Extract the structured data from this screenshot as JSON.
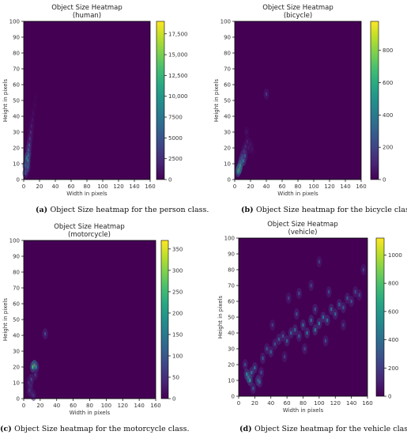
{
  "chart_data": [
    {
      "type": "heatmap",
      "title": "Object Size Heatmap",
      "subtitle": "(human)",
      "xlabel": "Width in pixels",
      "ylabel": "Height in pixels",
      "xlim": [
        0,
        160
      ],
      "ylim": [
        0,
        100
      ],
      "xticks": [
        0,
        20,
        40,
        60,
        80,
        100,
        120,
        140,
        160
      ],
      "yticks": [
        0,
        10,
        20,
        30,
        40,
        50,
        60,
        70,
        80,
        90,
        100
      ],
      "colorbar": {
        "min": 0,
        "max": 19000,
        "ticks": [
          0,
          2500,
          5000,
          7500,
          10000,
          12500,
          15000,
          17500
        ],
        "tick_labels": [
          "0",
          "2500",
          "5000",
          "7500",
          "10,000",
          "12,500",
          "15,000",
          "17,500"
        ]
      },
      "colormap": "viridis",
      "cells": [
        {
          "x": 4,
          "y": 10,
          "value": 16500
        },
        {
          "x": 3,
          "y": 8,
          "value": 13000
        },
        {
          "x": 5,
          "y": 12,
          "value": 12000
        },
        {
          "x": 4,
          "y": 14,
          "value": 9500
        },
        {
          "x": 6,
          "y": 16,
          "value": 8000
        },
        {
          "x": 3,
          "y": 6,
          "value": 7500
        },
        {
          "x": 6,
          "y": 19,
          "value": 6000
        },
        {
          "x": 7,
          "y": 22,
          "value": 4500
        },
        {
          "x": 2,
          "y": 4,
          "value": 4000
        },
        {
          "x": 8,
          "y": 26,
          "value": 3000
        },
        {
          "x": 9,
          "y": 30,
          "value": 2200
        },
        {
          "x": 10,
          "y": 34,
          "value": 1500
        },
        {
          "x": 11,
          "y": 38,
          "value": 1000
        },
        {
          "x": 12,
          "y": 42,
          "value": 700
        },
        {
          "x": 14,
          "y": 47,
          "value": 400
        },
        {
          "x": 15,
          "y": 52,
          "value": 250
        },
        {
          "x": 5,
          "y": 8,
          "value": 6500
        },
        {
          "x": 2,
          "y": 9,
          "value": 5000
        }
      ],
      "caption_label": "(a)",
      "caption_text": "Object Size heatmap for the person class."
    },
    {
      "type": "heatmap",
      "title": "Object Size Heatmap",
      "subtitle": "(bicycle)",
      "xlabel": "Width in pixels",
      "ylabel": "Height in pixels",
      "xlim": [
        0,
        160
      ],
      "ylim": [
        0,
        100
      ],
      "xticks": [
        0,
        20,
        40,
        60,
        80,
        100,
        120,
        140,
        160
      ],
      "yticks": [
        0,
        10,
        20,
        30,
        40,
        50,
        60,
        70,
        80,
        90,
        100
      ],
      "colorbar": {
        "min": 0,
        "max": 980,
        "ticks": [
          0,
          200,
          400,
          600,
          800
        ],
        "tick_labels": [
          "0",
          "200",
          "400",
          "600",
          "800"
        ]
      },
      "colormap": "viridis",
      "cells": [
        {
          "x": 6,
          "y": 7,
          "value": 950
        },
        {
          "x": 5,
          "y": 6,
          "value": 800
        },
        {
          "x": 7,
          "y": 9,
          "value": 650
        },
        {
          "x": 8,
          "y": 11,
          "value": 500
        },
        {
          "x": 9,
          "y": 13,
          "value": 380
        },
        {
          "x": 4,
          "y": 5,
          "value": 450
        },
        {
          "x": 10,
          "y": 15,
          "value": 280
        },
        {
          "x": 12,
          "y": 18,
          "value": 180
        },
        {
          "x": 14,
          "y": 21,
          "value": 120
        },
        {
          "x": 16,
          "y": 24,
          "value": 80
        },
        {
          "x": 18,
          "y": 20,
          "value": 90
        },
        {
          "x": 20,
          "y": 22,
          "value": 60
        },
        {
          "x": 22,
          "y": 19,
          "value": 50
        },
        {
          "x": 40,
          "y": 54,
          "value": 150
        },
        {
          "x": 11,
          "y": 12,
          "value": 420
        },
        {
          "x": 13,
          "y": 15,
          "value": 260
        },
        {
          "x": 15,
          "y": 30,
          "value": 50
        }
      ],
      "caption_label": "(b)",
      "caption_text": "Object Size heatmap for the bicycle class."
    },
    {
      "type": "heatmap",
      "title": "Object Size Heatmap",
      "subtitle": "(motorcycle)",
      "xlabel": "Width in pixels",
      "ylabel": "Height in pixels",
      "xlim": [
        0,
        160
      ],
      "ylim": [
        0,
        100
      ],
      "xticks": [
        0,
        20,
        40,
        60,
        80,
        100,
        120,
        140,
        160
      ],
      "yticks": [
        0,
        10,
        20,
        30,
        40,
        50,
        60,
        70,
        80,
        90,
        100
      ],
      "colorbar": {
        "min": 0,
        "max": 370,
        "ticks": [
          0,
          50,
          100,
          150,
          200,
          250,
          300,
          350
        ],
        "tick_labels": [
          "0",
          "50",
          "100",
          "150",
          "200",
          "250",
          "300",
          "350"
        ]
      },
      "colormap": "viridis",
      "cells": [
        {
          "x": 13,
          "y": 21,
          "value": 360
        },
        {
          "x": 11,
          "y": 20,
          "value": 250
        },
        {
          "x": 15,
          "y": 20,
          "value": 160
        },
        {
          "x": 9,
          "y": 12,
          "value": 90
        },
        {
          "x": 8,
          "y": 8,
          "value": 70
        },
        {
          "x": 7,
          "y": 5,
          "value": 60
        },
        {
          "x": 10,
          "y": 3,
          "value": 50
        },
        {
          "x": 12,
          "y": 2,
          "value": 45
        },
        {
          "x": 26,
          "y": 41,
          "value": 80
        },
        {
          "x": 14,
          "y": 15,
          "value": 60
        },
        {
          "x": 6,
          "y": 10,
          "value": 40
        }
      ],
      "caption_label": "(c)",
      "caption_text": "Object Size heatmap for the motorcycle class."
    },
    {
      "type": "heatmap",
      "title": "Object Size Heatmap",
      "subtitle": "(vehicle)",
      "xlabel": "Width in pixels",
      "ylabel": "Height in pixels",
      "xlim": [
        0,
        160
      ],
      "ylim": [
        0,
        100
      ],
      "xticks": [
        0,
        20,
        40,
        60,
        80,
        100,
        120,
        140,
        160
      ],
      "yticks": [
        0,
        10,
        20,
        30,
        40,
        50,
        60,
        70,
        80,
        90,
        100
      ],
      "colorbar": {
        "min": 0,
        "max": 1120,
        "ticks": [
          0,
          200,
          400,
          600,
          800,
          1000
        ],
        "tick_labels": [
          "0",
          "200",
          "400",
          "600",
          "800",
          "1000"
        ]
      },
      "colormap": "viridis",
      "cells": [
        {
          "x": 12,
          "y": 12,
          "value": 700
        },
        {
          "x": 14,
          "y": 10,
          "value": 600
        },
        {
          "x": 10,
          "y": 14,
          "value": 500
        },
        {
          "x": 16,
          "y": 15,
          "value": 420
        },
        {
          "x": 20,
          "y": 18,
          "value": 380
        },
        {
          "x": 24,
          "y": 10,
          "value": 450
        },
        {
          "x": 26,
          "y": 9,
          "value": 350
        },
        {
          "x": 30,
          "y": 24,
          "value": 300
        },
        {
          "x": 35,
          "y": 30,
          "value": 280
        },
        {
          "x": 40,
          "y": 28,
          "value": 320
        },
        {
          "x": 45,
          "y": 33,
          "value": 260
        },
        {
          "x": 50,
          "y": 36,
          "value": 300
        },
        {
          "x": 55,
          "y": 38,
          "value": 280
        },
        {
          "x": 60,
          "y": 35,
          "value": 320
        },
        {
          "x": 65,
          "y": 40,
          "value": 350
        },
        {
          "x": 70,
          "y": 42,
          "value": 360
        },
        {
          "x": 75,
          "y": 38,
          "value": 300
        },
        {
          "x": 80,
          "y": 45,
          "value": 380
        },
        {
          "x": 85,
          "y": 40,
          "value": 400
        },
        {
          "x": 90,
          "y": 48,
          "value": 380
        },
        {
          "x": 95,
          "y": 42,
          "value": 450
        },
        {
          "x": 100,
          "y": 46,
          "value": 420
        },
        {
          "x": 105,
          "y": 50,
          "value": 400
        },
        {
          "x": 110,
          "y": 48,
          "value": 380
        },
        {
          "x": 115,
          "y": 55,
          "value": 350
        },
        {
          "x": 120,
          "y": 52,
          "value": 330
        },
        {
          "x": 125,
          "y": 58,
          "value": 320
        },
        {
          "x": 130,
          "y": 56,
          "value": 300
        },
        {
          "x": 135,
          "y": 62,
          "value": 280
        },
        {
          "x": 140,
          "y": 60,
          "value": 260
        },
        {
          "x": 145,
          "y": 66,
          "value": 240
        },
        {
          "x": 150,
          "y": 64,
          "value": 220
        },
        {
          "x": 155,
          "y": 80,
          "value": 200
        },
        {
          "x": 62,
          "y": 62,
          "value": 200
        },
        {
          "x": 75,
          "y": 65,
          "value": 250
        },
        {
          "x": 100,
          "y": 85,
          "value": 200
        },
        {
          "x": 90,
          "y": 70,
          "value": 220
        },
        {
          "x": 112,
          "y": 66,
          "value": 240
        },
        {
          "x": 57,
          "y": 25,
          "value": 200
        },
        {
          "x": 82,
          "y": 30,
          "value": 230
        },
        {
          "x": 108,
          "y": 35,
          "value": 250
        },
        {
          "x": 72,
          "y": 52,
          "value": 260
        },
        {
          "x": 95,
          "y": 55,
          "value": 280
        },
        {
          "x": 42,
          "y": 45,
          "value": 200
        },
        {
          "x": 130,
          "y": 45,
          "value": 200
        },
        {
          "x": 18,
          "y": 5,
          "value": 300
        },
        {
          "x": 8,
          "y": 20,
          "value": 250
        },
        {
          "x": 28,
          "y": 15,
          "value": 260
        }
      ],
      "caption_label": "(d)",
      "caption_text": "Object Size heatmap for the vehicle class."
    }
  ],
  "colors": {
    "background": "#440154",
    "axis": "#000000"
  }
}
